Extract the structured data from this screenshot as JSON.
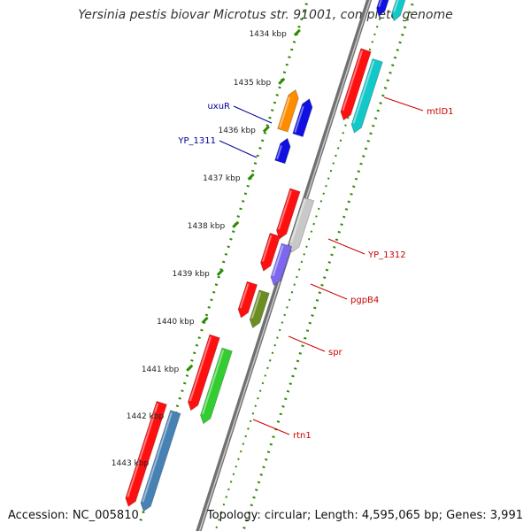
{
  "title": "Yersinia pestis biovar Microtus str. 91001, complete genome",
  "footer": {
    "accession": "Accession: NC_005810",
    "summary": "Topology: circular; Length: 4,595,065 bp; Genes: 3,991"
  },
  "scale_labels": [
    "1434 kbp",
    "1435 kbp",
    "1436 kbp",
    "1437 kbp",
    "1438 kbp",
    "1439 kbp",
    "1440 kbp",
    "1441 kbp",
    "1442 kbp",
    "1443 kbp"
  ],
  "gene_labels": [
    {
      "name": "mtlD1",
      "color": "#cc0000"
    },
    {
      "name": "uxuR",
      "color": "#000099"
    },
    {
      "name": "YP_1311",
      "color": "#000099"
    },
    {
      "name": "YP_1312",
      "color": "#cc0000"
    },
    {
      "name": "pgpB4",
      "color": "#cc0000"
    },
    {
      "name": "spr",
      "color": "#cc0000"
    },
    {
      "name": "rtn1",
      "color": "#cc0000"
    }
  ],
  "colors": {
    "backbone": "#8a8a8a",
    "scale_ticks": "#2e8b00",
    "cds": "#ff1010",
    "mtlD1": "#12c8c8",
    "uxuR": "#ff8c00",
    "YP_1311": "#1010e0",
    "YP_1312": "#c8c8c8",
    "pgpB4": "#7b68ee",
    "spr": "#6b8e23",
    "rtn1": "#32cd32",
    "blue_gene": "#4682b4"
  }
}
